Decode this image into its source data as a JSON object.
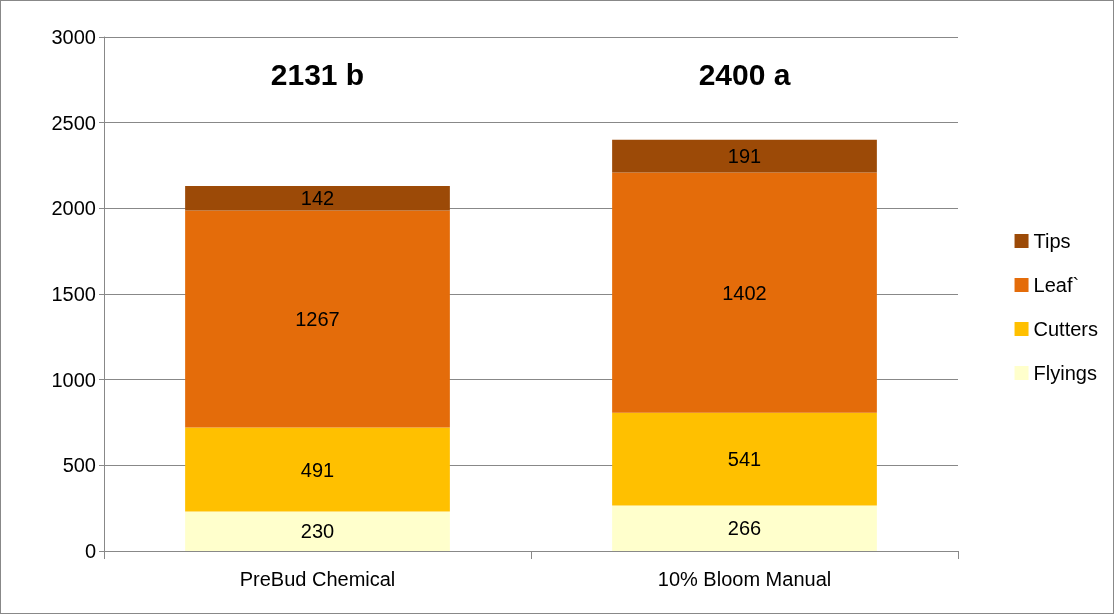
{
  "chart_data": {
    "type": "bar",
    "stacked": true,
    "categories": [
      "PreBud Chemical",
      "10% Bloom Manual"
    ],
    "series": [
      {
        "name": "Flyings",
        "color": "#ffffcc",
        "values": [
          230,
          266
        ]
      },
      {
        "name": "Cutters",
        "color": "#ffc000",
        "values": [
          491,
          541
        ]
      },
      {
        "name": "Leaf`",
        "color": "#e46c0a",
        "values": [
          1267,
          1402
        ]
      },
      {
        "name": "Tips",
        "color": "#9c4a07",
        "values": [
          142,
          191
        ]
      }
    ],
    "totals": [
      "2131 b",
      "2400 a"
    ],
    "ylim": [
      0,
      3000
    ],
    "yticks": [
      0,
      500,
      1000,
      1500,
      2000,
      2500,
      3000
    ],
    "grid": "y",
    "legend": "right",
    "data_labels": true
  }
}
